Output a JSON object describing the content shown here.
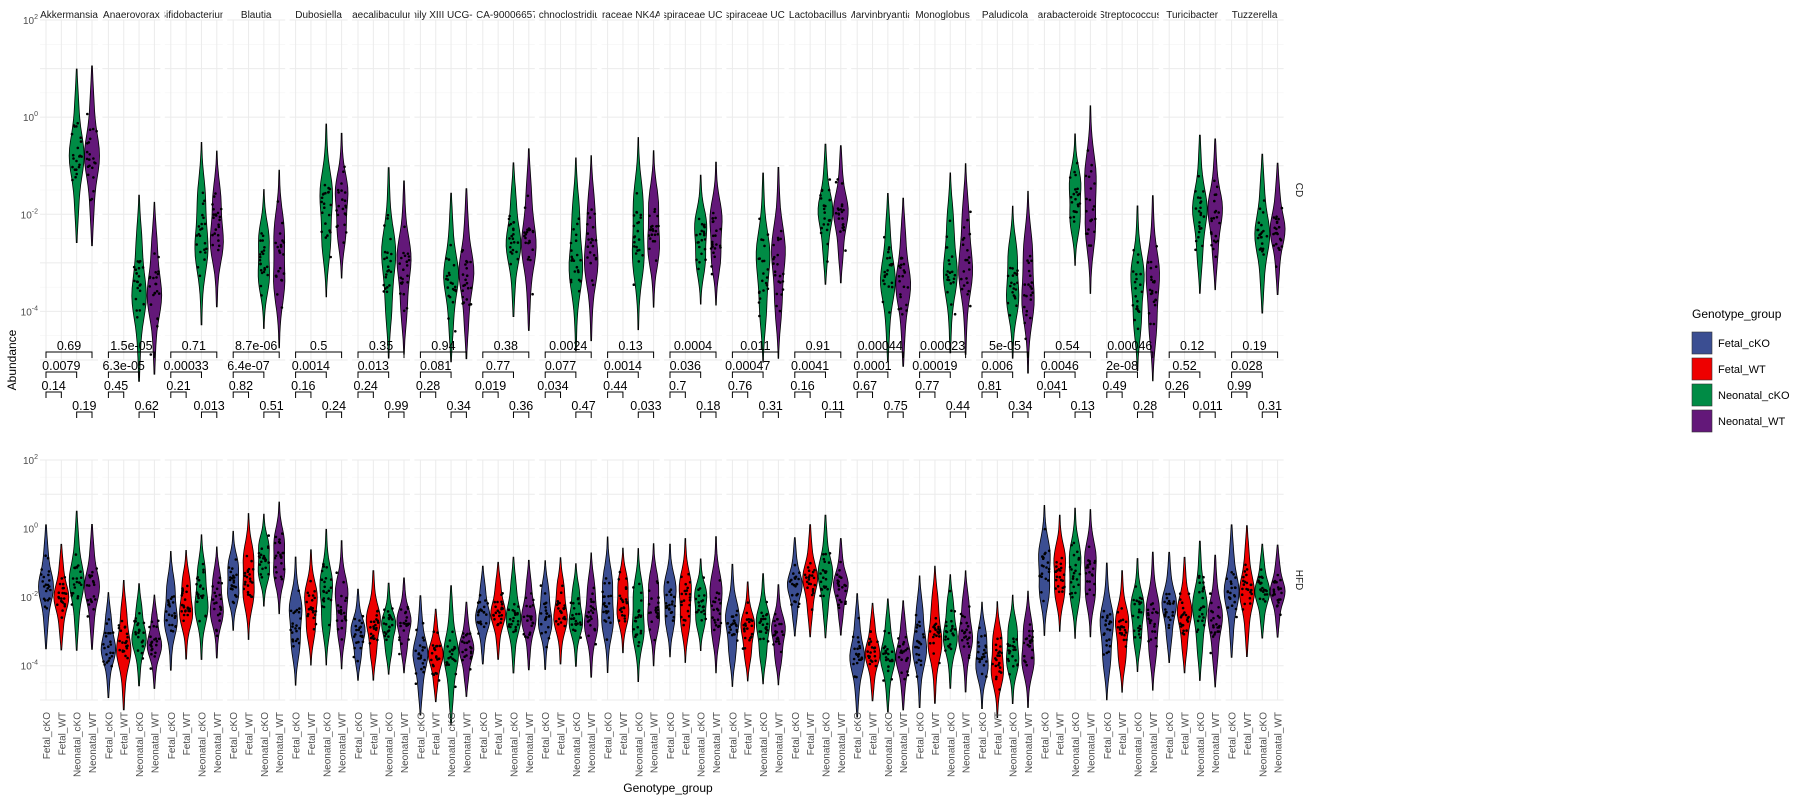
{
  "chart_data": {
    "type": "violin",
    "title": "",
    "xlabel": "Genotype_group",
    "ylabel": "Abundance",
    "yscale": "log10",
    "ylim": [
      1e-05,
      100
    ],
    "ytick_labels": [
      "10^-4",
      "10^-2",
      "10^0",
      "10^2"
    ],
    "legend": {
      "title": "Genotype_group",
      "placement": "right",
      "entries": [
        {
          "name": "Fetal_cKO",
          "color": "#3B4E92"
        },
        {
          "name": "Fetal_WT",
          "color": "#EE0000"
        },
        {
          "name": "Neonatal_cKO",
          "color": "#008B45"
        },
        {
          "name": "Neonatal_WT",
          "color": "#631879"
        }
      ]
    },
    "groups": [
      "Fetal_cKO",
      "Fetal_WT",
      "Neonatal_cKO",
      "Neonatal_WT"
    ],
    "rows": [
      "CD",
      "HFD"
    ],
    "row_groups": {
      "CD": [
        "Neonatal_cKO",
        "Neonatal_WT"
      ],
      "HFD": [
        "Fetal_cKO",
        "Fetal_WT",
        "Neonatal_cKO",
        "Neonatal_WT"
      ]
    },
    "taxa": [
      "Akkermansia",
      "Anaerovorax",
      "Bifidobacterium",
      "Blautia",
      "Dubosiella",
      "Faecalibaculum",
      "amily XIII UCG-00",
      "GCA-900066575",
      "achnoclostridiur",
      "piraceae NK4A1",
      "ospiraceae UCC",
      "ospiraceae UCC",
      "Lactobacillus",
      "Marvinbryantia",
      "Monoglobus",
      "Paludicola",
      "Parabacteroides",
      "Streptococcus",
      "Turicibacter",
      "Tuzzerella"
    ],
    "medians": {
      "CD": [
        [
          0.16,
          0.16
        ],
        [
          0.0003,
          0.0003
        ],
        [
          0.004,
          0.005
        ],
        [
          0.0012,
          0.0012
        ],
        [
          0.012,
          0.015
        ],
        [
          0.001,
          0.0008
        ],
        [
          0.0005,
          0.0006
        ],
        [
          0.003,
          0.003
        ],
        [
          0.0015,
          0.002
        ],
        [
          0.004,
          0.005
        ],
        [
          0.003,
          0.004
        ],
        [
          0.0008,
          0.001
        ],
        [
          0.01,
          0.01
        ],
        [
          0.0005,
          0.0004
        ],
        [
          0.001,
          0.0012
        ],
        [
          0.0004,
          0.0004
        ],
        [
          0.02,
          0.02
        ],
        [
          0.0003,
          0.0003
        ],
        [
          0.01,
          0.01
        ],
        [
          0.004,
          0.005
        ]
      ],
      "HFD": [
        [
          0.02,
          0.01,
          0.03,
          0.02
        ],
        [
          0.0004,
          0.0004,
          0.0008,
          0.0005
        ],
        [
          0.004,
          0.006,
          0.01,
          0.007
        ],
        [
          0.03,
          0.04,
          0.12,
          0.14
        ],
        [
          0.002,
          0.005,
          0.01,
          0.006
        ],
        [
          0.0008,
          0.0015,
          0.0012,
          0.0015
        ],
        [
          0.0002,
          0.0002,
          0.0002,
          0.0003
        ],
        [
          0.003,
          0.004,
          0.003,
          0.003
        ],
        [
          0.003,
          0.004,
          0.003,
          0.003
        ],
        [
          0.006,
          0.008,
          0.003,
          0.006
        ],
        [
          0.008,
          0.008,
          0.006,
          0.006
        ],
        [
          0.0015,
          0.001,
          0.0012,
          0.0008
        ],
        [
          0.02,
          0.03,
          0.04,
          0.02
        ],
        [
          0.0002,
          0.00025,
          0.0002,
          0.0002
        ],
        [
          0.0005,
          0.0008,
          0.001,
          0.001
        ],
        [
          0.0002,
          0.00015,
          0.0003,
          0.0003
        ],
        [
          0.06,
          0.05,
          0.05,
          0.05
        ],
        [
          0.001,
          0.001,
          0.003,
          0.002
        ],
        [
          0.005,
          0.003,
          0.004,
          0.002
        ],
        [
          0.015,
          0.015,
          0.015,
          0.015
        ]
      ]
    },
    "p_values": {
      "cd_neonatal_cko_vs_neonatal_wt": [
        "0.19",
        "0.62",
        "0.013",
        "0.51",
        "0.24",
        "0.99",
        "0.34",
        "0.36",
        "0.47",
        "0.033",
        "0.18",
        "0.31",
        "0.11",
        "0.75",
        "0.44",
        "0.34",
        "0.13",
        "0.28",
        "0.011",
        "0.31"
      ],
      "fetal_cko_vs_fetal_wt": [
        "0.14",
        "0.45",
        "0.21",
        "0.82",
        "0.16",
        "0.24",
        "0.28",
        "0.019",
        "0.034",
        "0.44",
        "0.7",
        "0.76",
        "0.16",
        "0.67",
        "0.77",
        "0.81",
        "0.041",
        "0.49",
        "0.26",
        "0.99"
      ],
      "fetal_cko_vs_neonatal_cko": [
        "0.0079",
        "6.3e-05",
        "0.00033",
        "6.4e-07",
        "0.0014",
        "0.013",
        "0.081",
        "0.77",
        "0.077",
        "0.0014",
        "0.036",
        "0.00047",
        "0.0041",
        "0.0001",
        "0.00019",
        "0.006",
        "0.0046",
        "2e-08",
        "0.52",
        "0.028"
      ],
      "fetal_cko_vs_neonatal_wt": [
        "0.69",
        "1.5e-05",
        "0.71",
        "8.7e-06",
        "0.5",
        "0.35",
        "0.94",
        "0.38",
        "0.0024",
        "0.13",
        "0.0004",
        "0.011",
        "0.91",
        "0.00044",
        "0.00023",
        "5e-05",
        "0.54",
        "0.00046",
        "0.12",
        "0.19"
      ]
    }
  }
}
